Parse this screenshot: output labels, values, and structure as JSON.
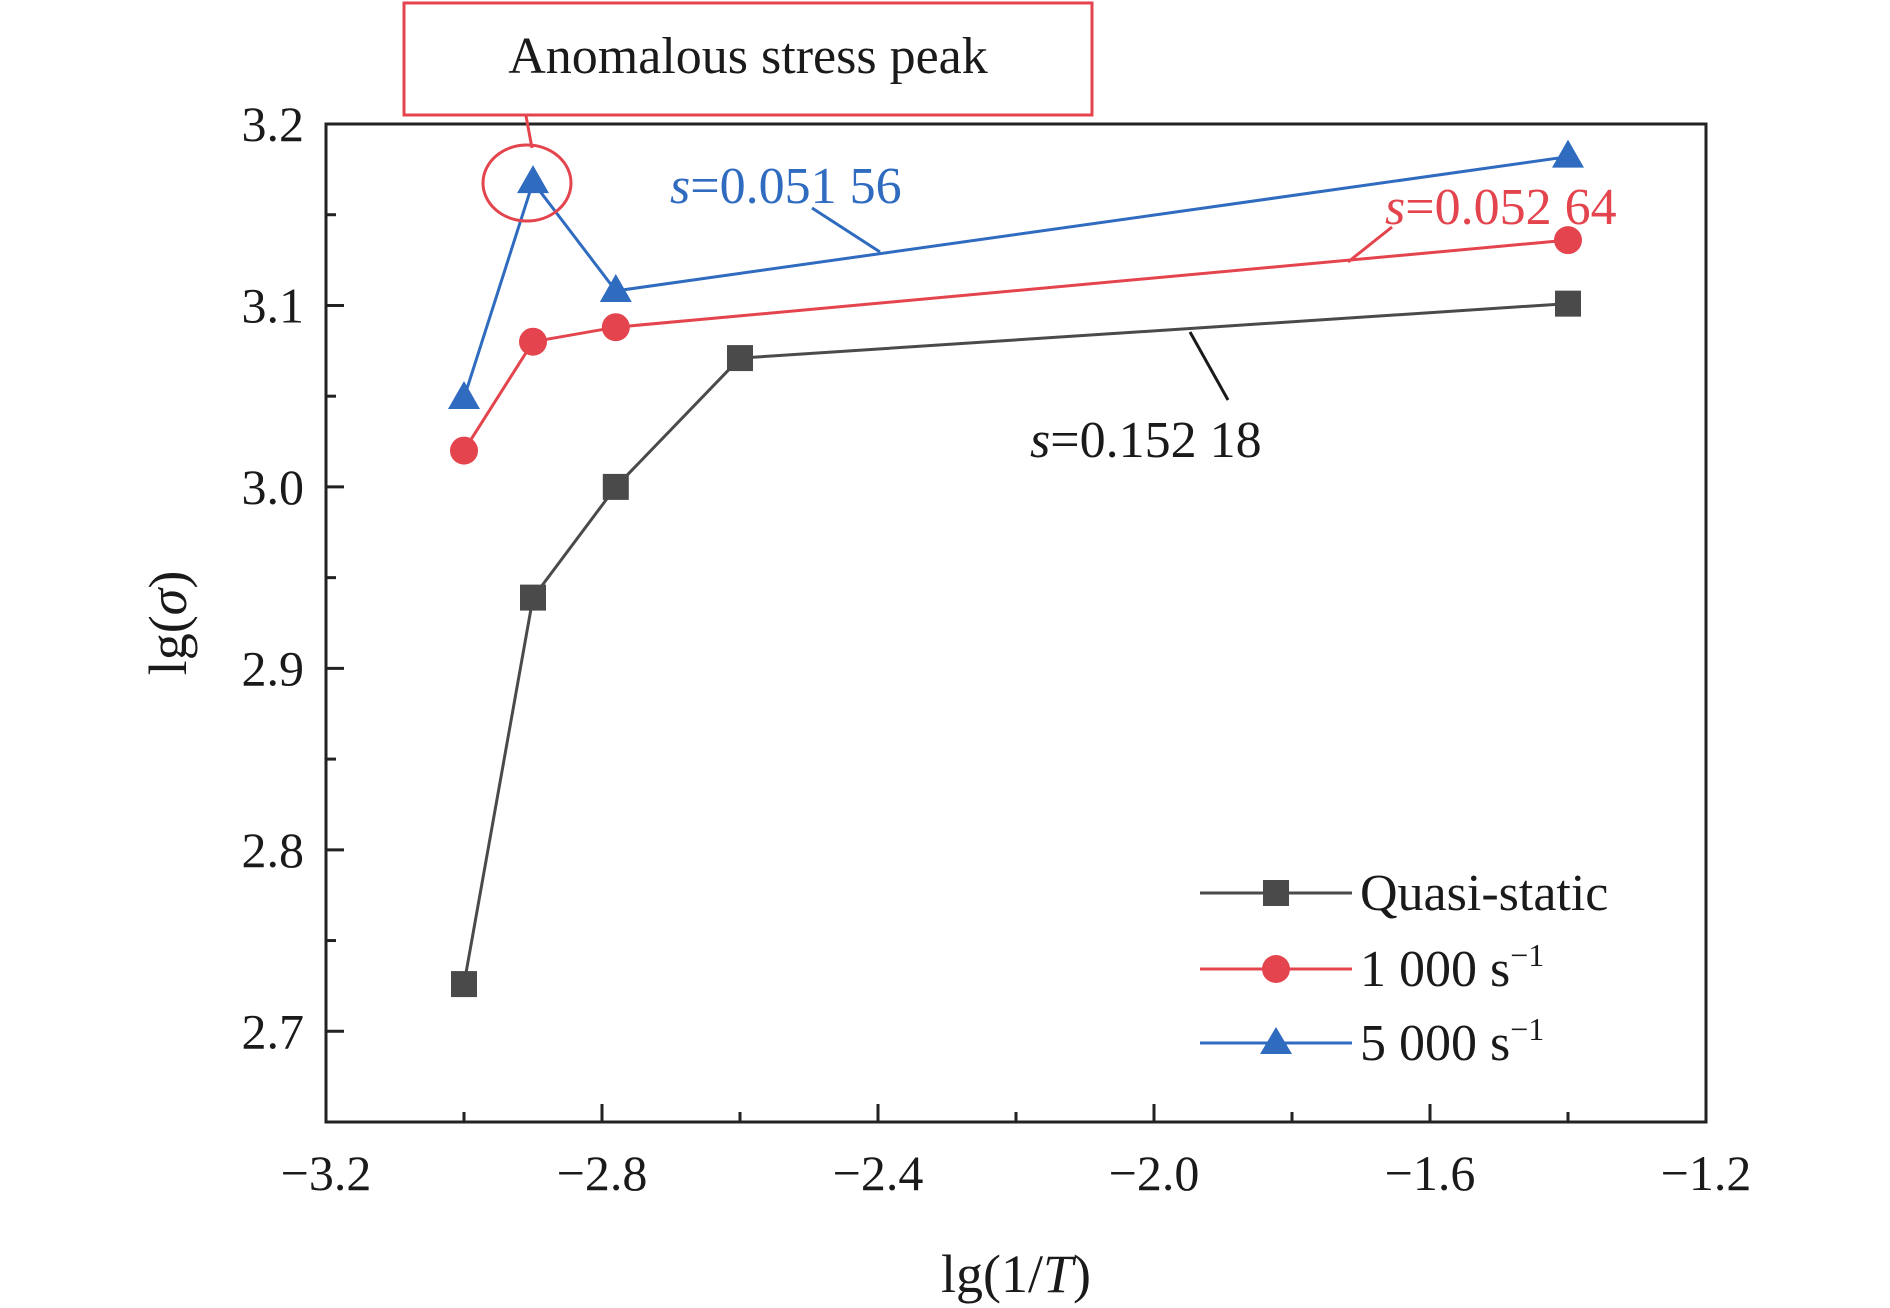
{
  "chart_data": {
    "type": "line",
    "xlabel": {
      "prefix": "lg(1/",
      "var": "T",
      "suffix": ")"
    },
    "ylabel": {
      "prefix": "lg(",
      "var": "σ",
      "suffix": ")"
    },
    "xlim": [
      -3.2,
      -1.2
    ],
    "ylim": [
      2.65,
      3.2
    ],
    "xticks": [
      -3.2,
      -2.8,
      -2.4,
      -2.0,
      -1.6,
      -1.2
    ],
    "xtick_labels": [
      "−3.2",
      "−2.8",
      "−2.4",
      "−2.0",
      "−1.6",
      "−1.2"
    ],
    "xminor": [
      -3.0,
      -2.6,
      -2.2,
      -1.8,
      -1.4
    ],
    "yticks": [
      2.7,
      2.8,
      2.9,
      3.0,
      3.1,
      3.2
    ],
    "ytick_labels": [
      "2.7",
      "2.8",
      "2.9",
      "3.0",
      "3.1",
      "3.2"
    ],
    "yminor": [
      2.75,
      2.85,
      2.95,
      3.05,
      3.15
    ],
    "grid": false,
    "legend_position": "bottom-right",
    "series": [
      {
        "name": "Quasi-static",
        "marker": "square",
        "color": "#4a4a4a",
        "x": [
          -3.0,
          -2.9,
          -2.78,
          -2.6,
          -1.4
        ],
        "y": [
          2.726,
          2.939,
          3.0,
          3.071,
          3.101
        ]
      },
      {
        "name": "1 000 s",
        "name_sup": "−1",
        "marker": "circle",
        "color": "#e3444d",
        "x": [
          -3.0,
          -2.9,
          -2.78,
          -1.4
        ],
        "y": [
          3.02,
          3.08,
          3.088,
          3.136
        ]
      },
      {
        "name": "5 000 s",
        "name_sup": "−1",
        "marker": "triangle",
        "color": "#2f6bbf",
        "x": [
          -3.0,
          -2.9,
          -2.78,
          -1.4
        ],
        "y": [
          3.049,
          3.168,
          3.108,
          3.182
        ]
      }
    ],
    "annotations": [
      {
        "var": "s",
        "text": "=0.051 56",
        "color": "#2f6bbf"
      },
      {
        "var": "s",
        "text": "=0.052 64",
        "color": "#e3444d"
      },
      {
        "var": "s",
        "text": "=0.152 18",
        "color": "#1a1a1a"
      }
    ],
    "callout": {
      "text": "Anomalous stress peak",
      "color": "#e3444d"
    }
  }
}
